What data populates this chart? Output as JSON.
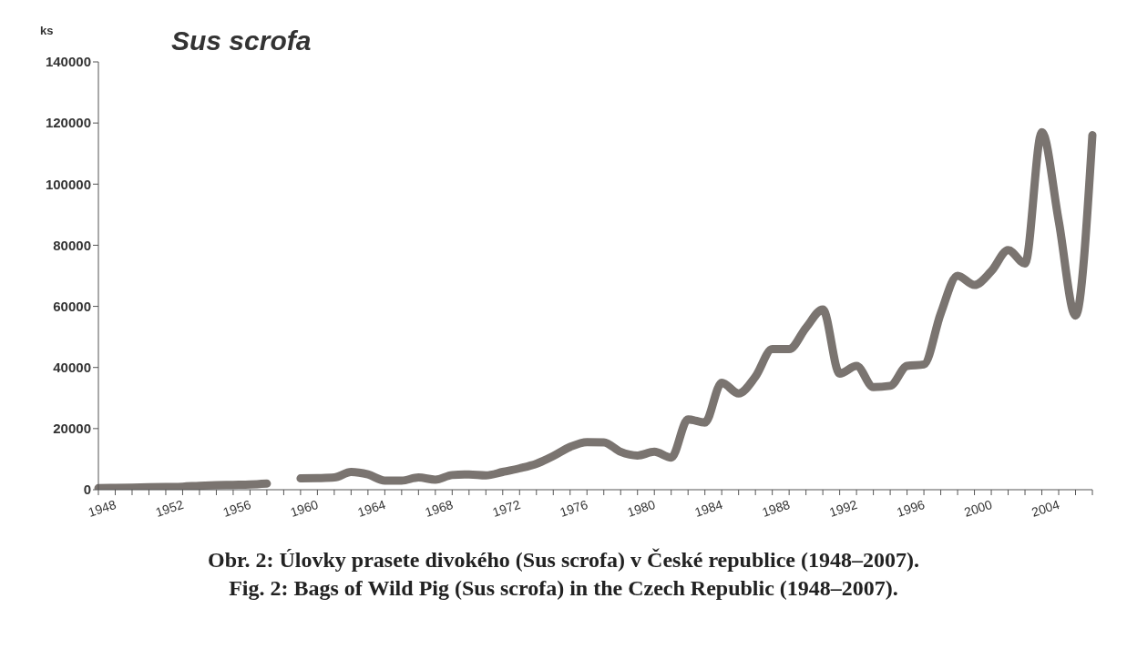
{
  "chart_data": {
    "type": "line",
    "title": "Sus scrofa",
    "ylabel": "ks",
    "categories": [
      "1948",
      null,
      null,
      null,
      "1952",
      null,
      null,
      null,
      "1956",
      null,
      null,
      null,
      "1960",
      null,
      null,
      null,
      "1964",
      null,
      null,
      null,
      "1968",
      null,
      null,
      null,
      "1972",
      null,
      null,
      null,
      "1976",
      null,
      null,
      null,
      "1980",
      null,
      null,
      null,
      "1984",
      null,
      null,
      null,
      "1988",
      null,
      null,
      null,
      "1992",
      null,
      null,
      null,
      "1996",
      null,
      null,
      null,
      "2000",
      null,
      null,
      null,
      "2004",
      null,
      null,
      null
    ],
    "series": [
      {
        "color": "#7a7470",
        "values": [
          500,
          600,
          700,
          800,
          900,
          1000,
          1300,
          1500,
          1600,
          1700,
          2000,
          null,
          3700,
          3800,
          4000,
          5800,
          5000,
          3000,
          3000,
          4000,
          3300,
          4800,
          5000,
          4700,
          5800,
          7000,
          8500,
          11000,
          14000,
          15600,
          15500,
          12400,
          11200,
          12400,
          10500,
          23000,
          22000,
          35000,
          31500,
          37000,
          46000,
          46000,
          53000,
          59000,
          38000,
          40500,
          33600,
          34000,
          40500,
          41000,
          57700,
          70000,
          67000,
          71500,
          78400,
          74000,
          117000,
          88000,
          57000,
          116000
        ]
      }
    ],
    "ylim": [
      0,
      140000
    ],
    "yticks": [
      0,
      20000,
      40000,
      60000,
      80000,
      100000,
      120000,
      140000
    ],
    "annotations": [
      "Obr. 2: Úlovky prasete divokého (Sus scrofa) v České republice (1948–2007).",
      "Fig. 2: Bags of Wild Pig (Sus scrofa) in the Czech Republic (1948–2007)."
    ]
  }
}
